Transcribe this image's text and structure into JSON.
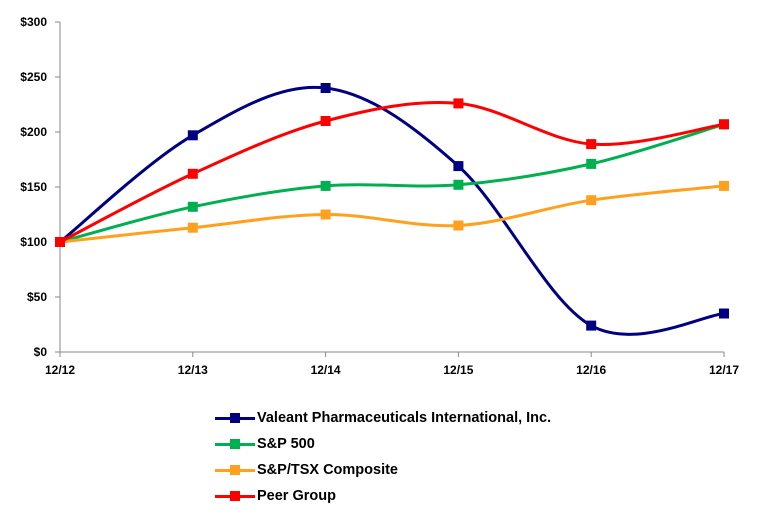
{
  "chart_data": {
    "type": "line",
    "title": "",
    "xlabel": "",
    "ylabel": "",
    "categories": [
      "12/12",
      "12/13",
      "12/14",
      "12/15",
      "12/16",
      "12/17"
    ],
    "ylim": [
      0,
      300
    ],
    "yticks": [
      0,
      50,
      100,
      150,
      200,
      250,
      300
    ],
    "ytick_labels": [
      "$0",
      "$50",
      "$100",
      "$150",
      "$200",
      "$250",
      "$300"
    ],
    "grid": false,
    "smooth": true,
    "legend_position": "bottom",
    "series": [
      {
        "name": "Valeant Pharmaceuticals International, Inc.",
        "color": "#000080",
        "values": [
          100,
          197,
          240,
          169,
          24,
          35
        ]
      },
      {
        "name": "S&P 500",
        "color": "#00B050",
        "values": [
          100,
          132,
          151,
          152,
          171,
          207
        ]
      },
      {
        "name": "S&P/TSX Composite",
        "color": "#FFA01E",
        "values": [
          100,
          113,
          125,
          115,
          138,
          151
        ]
      },
      {
        "name": "Peer Group",
        "color": "#FF0000",
        "values": [
          100,
          162,
          210,
          226,
          189,
          207
        ]
      }
    ]
  }
}
